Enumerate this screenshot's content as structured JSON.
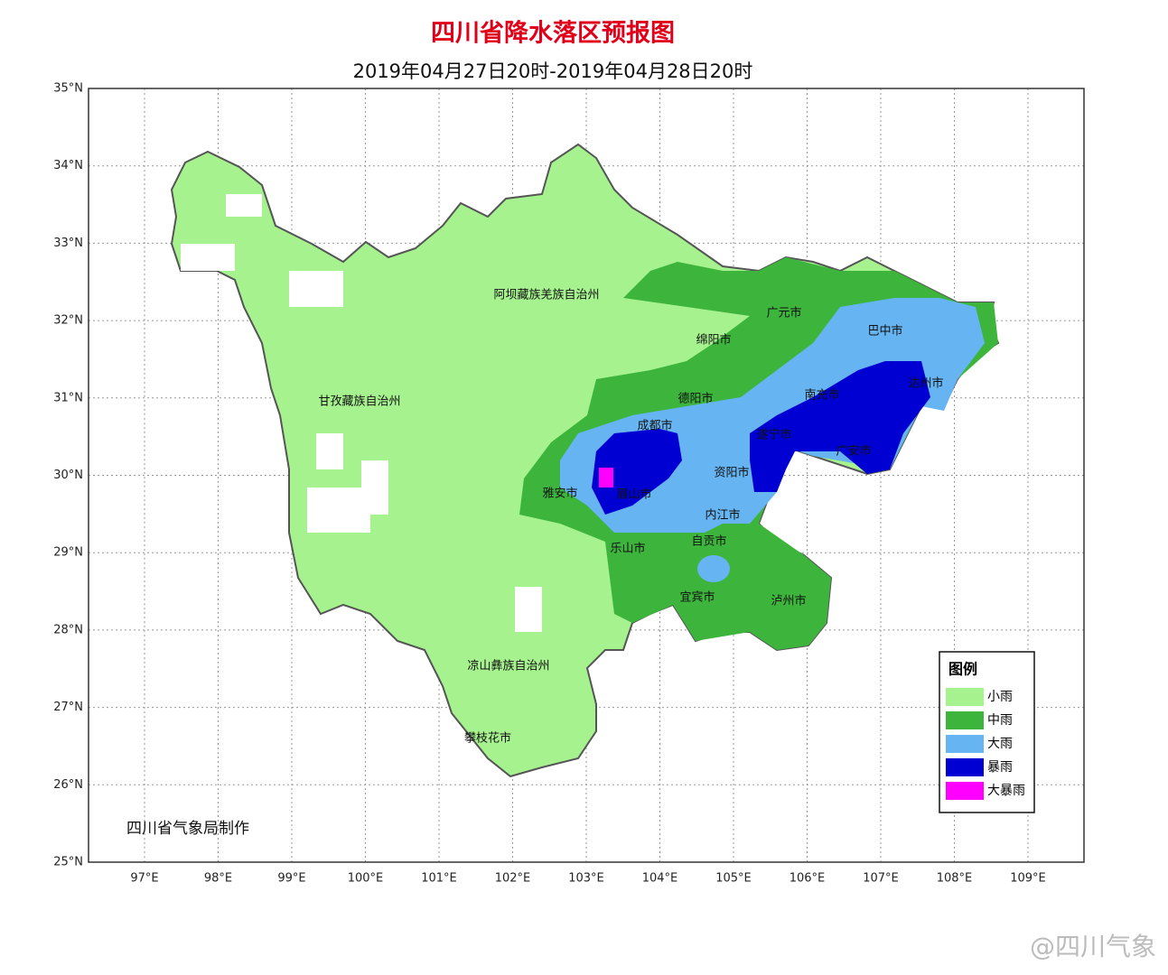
{
  "header": {
    "title": "四川省降水落区预报图",
    "subtitle": "2019年04月27日20时-2019年04月28日20时"
  },
  "axes": {
    "latitudes": [
      "35°N",
      "34°N",
      "33°N",
      "32°N",
      "31°N",
      "30°N",
      "29°N",
      "28°N",
      "27°N",
      "26°N",
      "25°N"
    ],
    "longitudes": [
      "97°E",
      "98°E",
      "99°E",
      "100°E",
      "101°E",
      "102°E",
      "103°E",
      "104°E",
      "105°E",
      "106°E",
      "107°E",
      "108°E",
      "109°E"
    ]
  },
  "labels": [
    "阿坝藏族羌族自治州",
    "甘孜藏族自治州",
    "凉山彝族自治州",
    "攀枝花市",
    "广元市",
    "巴中市",
    "绵阳市",
    "德阳市",
    "成都市",
    "南充市",
    "达州市",
    "遂宁市",
    "广安市",
    "雅安市",
    "眉山市",
    "资阳市",
    "内江市",
    "乐山市",
    "自贡市",
    "宜宾市",
    "泸州市"
  ],
  "legend": {
    "title": "图例",
    "items": [
      {
        "name": "小雨",
        "color": "#a6f28f"
      },
      {
        "name": "中雨",
        "color": "#3db53d"
      },
      {
        "name": "大雨",
        "color": "#66b4f2"
      },
      {
        "name": "暴雨",
        "color": "#0000d2"
      },
      {
        "name": "大暴雨",
        "color": "#ff00ff"
      }
    ]
  },
  "credit": "四川省气象局制作",
  "watermark": "@四川气象"
}
